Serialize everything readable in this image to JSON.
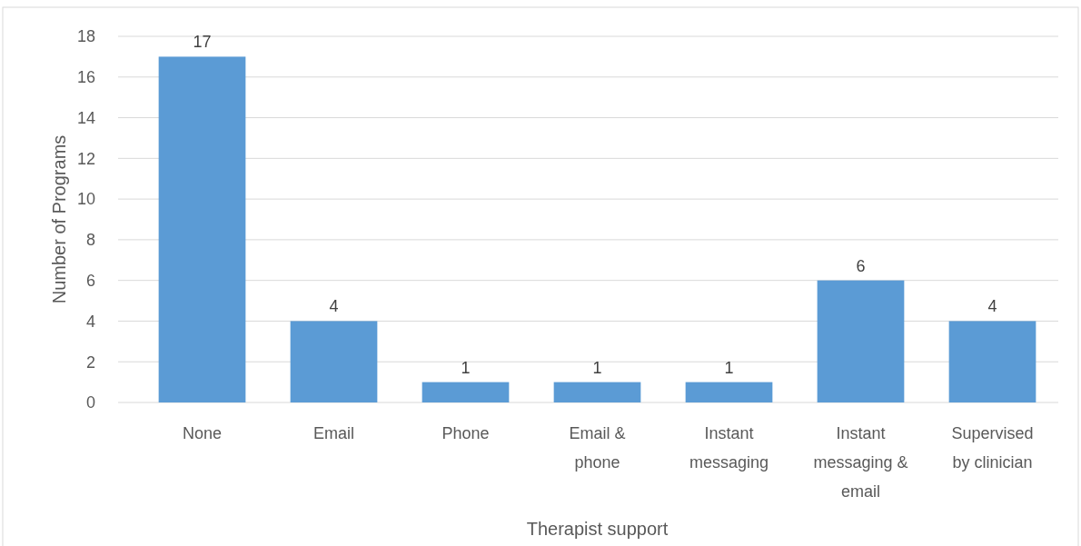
{
  "chart_data": {
    "type": "bar",
    "xlabel": "Therapist support",
    "ylabel": "Number of Programs",
    "categories": [
      "None",
      "Email",
      "Phone",
      "Email & phone",
      "Instant messaging",
      "Instant messaging & email",
      "Supervised by clinician"
    ],
    "values": [
      17,
      4,
      1,
      1,
      1,
      6,
      4
    ],
    "color": "#5b9bd5",
    "ylim": [
      0,
      18
    ],
    "yticks": [
      0,
      2,
      4,
      6,
      8,
      10,
      12,
      14,
      16,
      18
    ],
    "grid": "y",
    "data_labels": true
  }
}
